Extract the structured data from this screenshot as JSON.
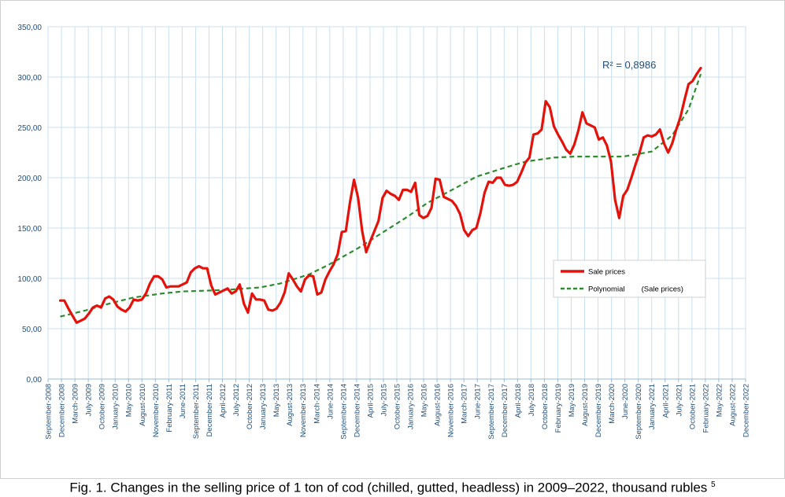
{
  "caption": {
    "text": "Fig. 1. Changes in the selling price of 1 ton of cod (chilled, gutted, headless) in 2009–2022, thousand rubles",
    "footnote": "5"
  },
  "colors": {
    "sale": "#e3120b",
    "poly": "#2e8b2e",
    "grid": "#c9dfef",
    "axis_text": "#1f4e79",
    "r2": "#1f4e79"
  },
  "chart_data": {
    "type": "line",
    "title": "",
    "xlabel": "",
    "ylabel": "",
    "ylim": [
      0,
      350
    ],
    "grid": true,
    "legend_placement": "right",
    "yticks": [
      "0,00",
      "50,00",
      "100,00",
      "150,00",
      "200,00",
      "250,00",
      "300,00",
      "350,00"
    ],
    "x_tick_labels": [
      "September-2008",
      "December-2008",
      "March-2009",
      "July-2009",
      "October-2009",
      "January-2010",
      "May-2010",
      "August-2010",
      "November-2010",
      "February-2011",
      "June-2011",
      "September-2011",
      "December-2011",
      "April-2012",
      "July-2012",
      "October-2012",
      "January-2013",
      "May-2013",
      "August-2013",
      "November-2013",
      "March-2014",
      "June-2014",
      "September-2014",
      "December-2014",
      "April-2015",
      "July-2015",
      "October-2015",
      "January-2016",
      "May-2016",
      "August-2016",
      "November-2016",
      "March-2017",
      "June-2017",
      "September-2017",
      "December-2017",
      "April-2018",
      "July-2018",
      "October-2018",
      "February-2019",
      "May-2019",
      "August-2019",
      "December-2019",
      "March-2020",
      "June-2020",
      "September-2020",
      "January-2021",
      "April-2021",
      "July-2021",
      "October-2021",
      "February-2022",
      "May-2022",
      "August-2022",
      "December-2022"
    ],
    "annotation": "R² = 0,8986",
    "series": [
      {
        "name": "Sale prices",
        "points": [
          [
            "2008-12",
            78
          ],
          [
            "2009-01",
            78
          ],
          [
            "2009-02",
            70
          ],
          [
            "2009-03",
            63
          ],
          [
            "2009-04",
            56
          ],
          [
            "2009-05",
            58
          ],
          [
            "2009-06",
            60
          ],
          [
            "2009-07",
            65
          ],
          [
            "2009-08",
            71
          ],
          [
            "2009-09",
            73
          ],
          [
            "2009-10",
            71
          ],
          [
            "2009-11",
            80
          ],
          [
            "2009-12",
            82
          ],
          [
            "2010-01",
            79
          ],
          [
            "2010-02",
            72
          ],
          [
            "2010-03",
            69
          ],
          [
            "2010-04",
            67
          ],
          [
            "2010-05",
            71
          ],
          [
            "2010-06",
            79
          ],
          [
            "2010-07",
            78
          ],
          [
            "2010-08",
            79
          ],
          [
            "2010-09",
            85
          ],
          [
            "2010-10",
            95
          ],
          [
            "2010-11",
            102
          ],
          [
            "2010-12",
            102
          ],
          [
            "2011-01",
            99
          ],
          [
            "2011-02",
            91
          ],
          [
            "2011-03",
            92
          ],
          [
            "2011-04",
            92
          ],
          [
            "2011-05",
            92
          ],
          [
            "2011-06",
            94
          ],
          [
            "2011-07",
            96
          ],
          [
            "2011-08",
            106
          ],
          [
            "2011-09",
            110
          ],
          [
            "2011-10",
            112
          ],
          [
            "2011-11",
            110
          ],
          [
            "2011-12",
            110
          ],
          [
            "2012-01",
            93
          ],
          [
            "2012-02",
            84
          ],
          [
            "2012-03",
            86
          ],
          [
            "2012-04",
            88
          ],
          [
            "2012-05",
            90
          ],
          [
            "2012-06",
            85
          ],
          [
            "2012-07",
            87
          ],
          [
            "2012-08",
            94
          ],
          [
            "2012-09",
            75
          ],
          [
            "2012-10",
            66
          ],
          [
            "2012-11",
            85
          ],
          [
            "2012-12",
            79
          ],
          [
            "2013-01",
            79
          ],
          [
            "2013-02",
            78
          ],
          [
            "2013-03",
            69
          ],
          [
            "2013-04",
            68
          ],
          [
            "2013-05",
            70
          ],
          [
            "2013-06",
            76
          ],
          [
            "2013-07",
            86
          ],
          [
            "2013-08",
            105
          ],
          [
            "2013-09",
            99
          ],
          [
            "2013-10",
            92
          ],
          [
            "2013-11",
            87
          ],
          [
            "2013-12",
            99
          ],
          [
            "2014-01",
            103
          ],
          [
            "2014-02",
            102
          ],
          [
            "2014-03",
            84
          ],
          [
            "2014-04",
            86
          ],
          [
            "2014-05",
            99
          ],
          [
            "2014-06",
            107
          ],
          [
            "2014-07",
            114
          ],
          [
            "2014-08",
            124
          ],
          [
            "2014-09",
            146
          ],
          [
            "2014-10",
            147
          ],
          [
            "2014-11",
            175
          ],
          [
            "2014-12",
            198
          ],
          [
            "2015-01",
            180
          ],
          [
            "2015-02",
            147
          ],
          [
            "2015-03",
            126
          ],
          [
            "2015-04",
            137
          ],
          [
            "2015-05",
            147
          ],
          [
            "2015-06",
            157
          ],
          [
            "2015-07",
            180
          ],
          [
            "2015-08",
            187
          ],
          [
            "2015-09",
            184
          ],
          [
            "2015-10",
            182
          ],
          [
            "2015-11",
            178
          ],
          [
            "2015-12",
            188
          ],
          [
            "2016-01",
            188
          ],
          [
            "2016-02",
            186
          ],
          [
            "2016-03",
            195
          ],
          [
            "2016-04",
            163
          ],
          [
            "2016-05",
            160
          ],
          [
            "2016-06",
            162
          ],
          [
            "2016-07",
            170
          ],
          [
            "2016-08",
            199
          ],
          [
            "2016-09",
            198
          ],
          [
            "2016-10",
            181
          ],
          [
            "2016-11",
            179
          ],
          [
            "2016-12",
            177
          ],
          [
            "2017-01",
            172
          ],
          [
            "2017-02",
            164
          ],
          [
            "2017-03",
            148
          ],
          [
            "2017-04",
            142
          ],
          [
            "2017-05",
            148
          ],
          [
            "2017-06",
            150
          ],
          [
            "2017-07",
            165
          ],
          [
            "2017-08",
            185
          ],
          [
            "2017-09",
            196
          ],
          [
            "2017-10",
            195
          ],
          [
            "2017-11",
            200
          ],
          [
            "2017-12",
            200
          ],
          [
            "2018-01",
            193
          ],
          [
            "2018-02",
            192
          ],
          [
            "2018-03",
            193
          ],
          [
            "2018-04",
            196
          ],
          [
            "2018-05",
            205
          ],
          [
            "2018-06",
            215
          ],
          [
            "2018-07",
            220
          ],
          [
            "2018-08",
            243
          ],
          [
            "2018-09",
            244
          ],
          [
            "2018-10",
            248
          ],
          [
            "2018-11",
            276
          ],
          [
            "2018-12",
            270
          ],
          [
            "2019-01",
            251
          ],
          [
            "2019-02",
            243
          ],
          [
            "2019-03",
            236
          ],
          [
            "2019-04",
            228
          ],
          [
            "2019-05",
            224
          ],
          [
            "2019-06",
            233
          ],
          [
            "2019-07",
            247
          ],
          [
            "2019-08",
            265
          ],
          [
            "2019-09",
            254
          ],
          [
            "2019-10",
            252
          ],
          [
            "2019-11",
            250
          ],
          [
            "2019-12",
            238
          ],
          [
            "2020-01",
            240
          ],
          [
            "2020-02",
            232
          ],
          [
            "2020-03",
            216
          ],
          [
            "2020-04",
            178
          ],
          [
            "2020-05",
            160
          ],
          [
            "2020-06",
            182
          ],
          [
            "2020-07",
            188
          ],
          [
            "2020-08",
            200
          ],
          [
            "2020-09",
            213
          ],
          [
            "2020-10",
            225
          ],
          [
            "2020-11",
            240
          ],
          [
            "2020-12",
            242
          ],
          [
            "2021-01",
            241
          ],
          [
            "2021-02",
            243
          ],
          [
            "2021-03",
            248
          ],
          [
            "2021-04",
            234
          ],
          [
            "2021-05",
            225
          ],
          [
            "2021-06",
            234
          ],
          [
            "2021-07",
            248
          ],
          [
            "2021-08",
            260
          ],
          [
            "2021-09",
            277
          ],
          [
            "2021-10",
            293
          ],
          [
            "2021-11",
            296
          ],
          [
            "2021-12",
            303
          ],
          [
            "2022-01",
            309
          ]
        ]
      },
      {
        "name": "Polynomial        (Sale prices)",
        "points": [
          [
            "2008-12",
            62
          ],
          [
            "2009-06",
            68
          ],
          [
            "2010-01",
            76
          ],
          [
            "2010-06",
            81
          ],
          [
            "2011-01",
            85
          ],
          [
            "2011-06",
            87
          ],
          [
            "2012-01",
            88
          ],
          [
            "2012-06",
            89
          ],
          [
            "2013-01",
            91
          ],
          [
            "2013-06",
            95
          ],
          [
            "2014-01",
            104
          ],
          [
            "2014-06",
            114
          ],
          [
            "2015-01",
            130
          ],
          [
            "2015-06",
            143
          ],
          [
            "2016-01",
            161
          ],
          [
            "2016-06",
            175
          ],
          [
            "2017-01",
            190
          ],
          [
            "2017-06",
            201
          ],
          [
            "2018-01",
            210
          ],
          [
            "2018-06",
            216
          ],
          [
            "2019-01",
            220
          ],
          [
            "2019-06",
            221
          ],
          [
            "2020-01",
            221
          ],
          [
            "2020-06",
            221
          ],
          [
            "2021-01",
            226
          ],
          [
            "2021-06",
            242
          ],
          [
            "2021-10",
            268
          ],
          [
            "2022-01",
            303
          ]
        ]
      }
    ]
  }
}
